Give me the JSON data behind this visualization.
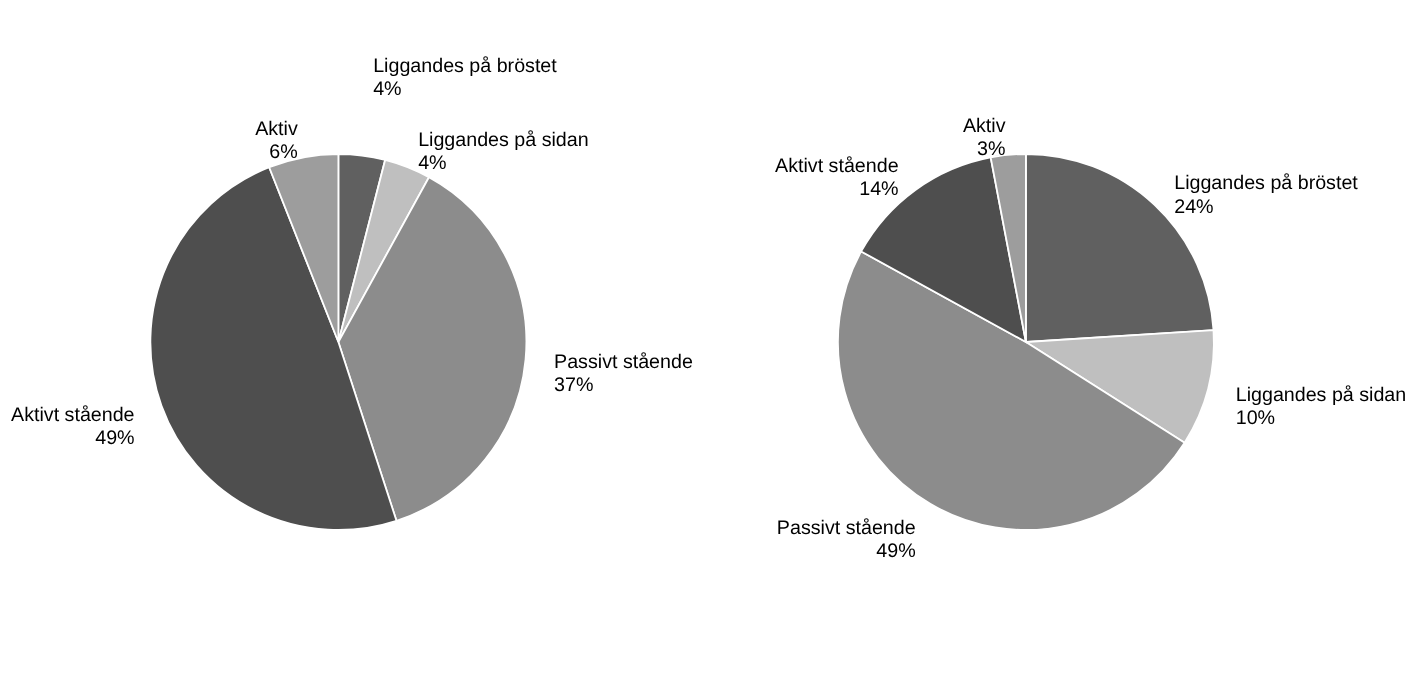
{
  "chart_data": [
    {
      "type": "pie",
      "categories": [
        "Liggandes på bröstet",
        "Liggandes på sidan",
        "Passivt stående",
        "Aktivt stående",
        "Aktiv"
      ],
      "values": [
        4,
        4,
        37,
        49,
        6
      ],
      "value_labels": [
        "4%",
        "4%",
        "37%",
        "49%",
        "6%"
      ],
      "colors": [
        "#606060",
        "#bfbfbf",
        "#8c8c8c",
        "#4e4e4e",
        "#9d9d9d"
      ]
    },
    {
      "type": "pie",
      "categories": [
        "Liggandes på bröstet",
        "Liggandes på sidan",
        "Passivt stående",
        "Aktivt stående",
        "Aktiv"
      ],
      "values": [
        24,
        10,
        49,
        14,
        3
      ],
      "value_labels": [
        "24%",
        "10%",
        "49%",
        "14%",
        "3%"
      ],
      "colors": [
        "#606060",
        "#bfbfbf",
        "#8c8c8c",
        "#4e4e4e",
        "#9d9d9d"
      ]
    }
  ]
}
